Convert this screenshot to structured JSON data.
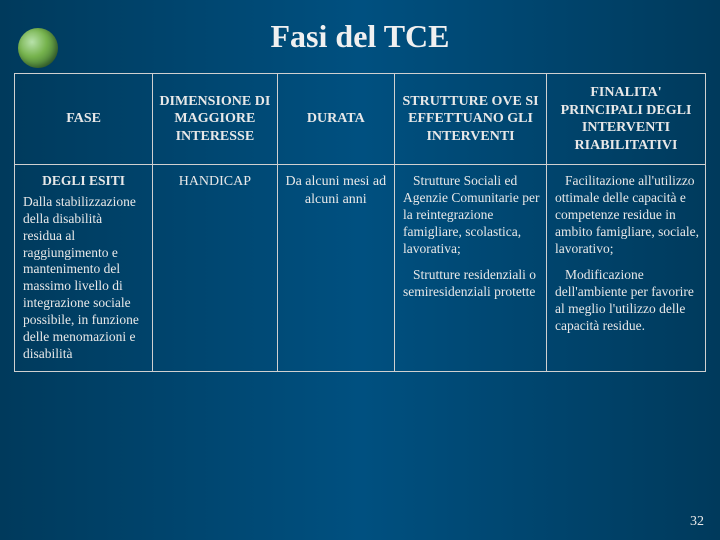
{
  "title": "Fasi del  TCE",
  "slide_number": "32",
  "colors": {
    "text": "#e8e8e8",
    "border": "#d0d0d0",
    "bg_left": "#003a5c",
    "bg_mid": "#005080",
    "bullet_light": "#d8ffb8",
    "bullet_mid": "#8bc84a",
    "bullet_dark": "#4a7a2a"
  },
  "headers": {
    "col1": "FASE",
    "col2": "DIMENSIONE DI MAGGIORE INTERESSE",
    "col3": "DURATA",
    "col4": "STRUTTURE OVE SI EFFETTUANO GLI INTERVENTI",
    "col5": "FINALITA' PRINCIPALI DEGLI INTERVENTI RIABILITATIVI"
  },
  "row": {
    "fase_title": "DEGLI ESITI",
    "fase_desc": "Dalla stabilizzazione della disabilità residua al raggiungimento e mantenimento del massimo livello di integrazione sociale possibile, in funzione delle menomazioni e disabilità",
    "dimensione": "HANDICAP",
    "durata": "Da alcuni mesi ad alcuni anni",
    "strutture_p1": "Strutture Sociali ed Agenzie Comunitarie per la reintegrazione famigliare, scolastica, lavorativa;",
    "strutture_p2": "Strutture residenziali o semiresidenziali protette",
    "finalita_p1": "Facilitazione all'utilizzo ottimale delle capacità e competenze residue in ambito famigliare, sociale, lavorativo;",
    "finalita_p2": "Modificazione dell'ambiente per favorire al meglio l'utilizzo delle capacità residue."
  }
}
